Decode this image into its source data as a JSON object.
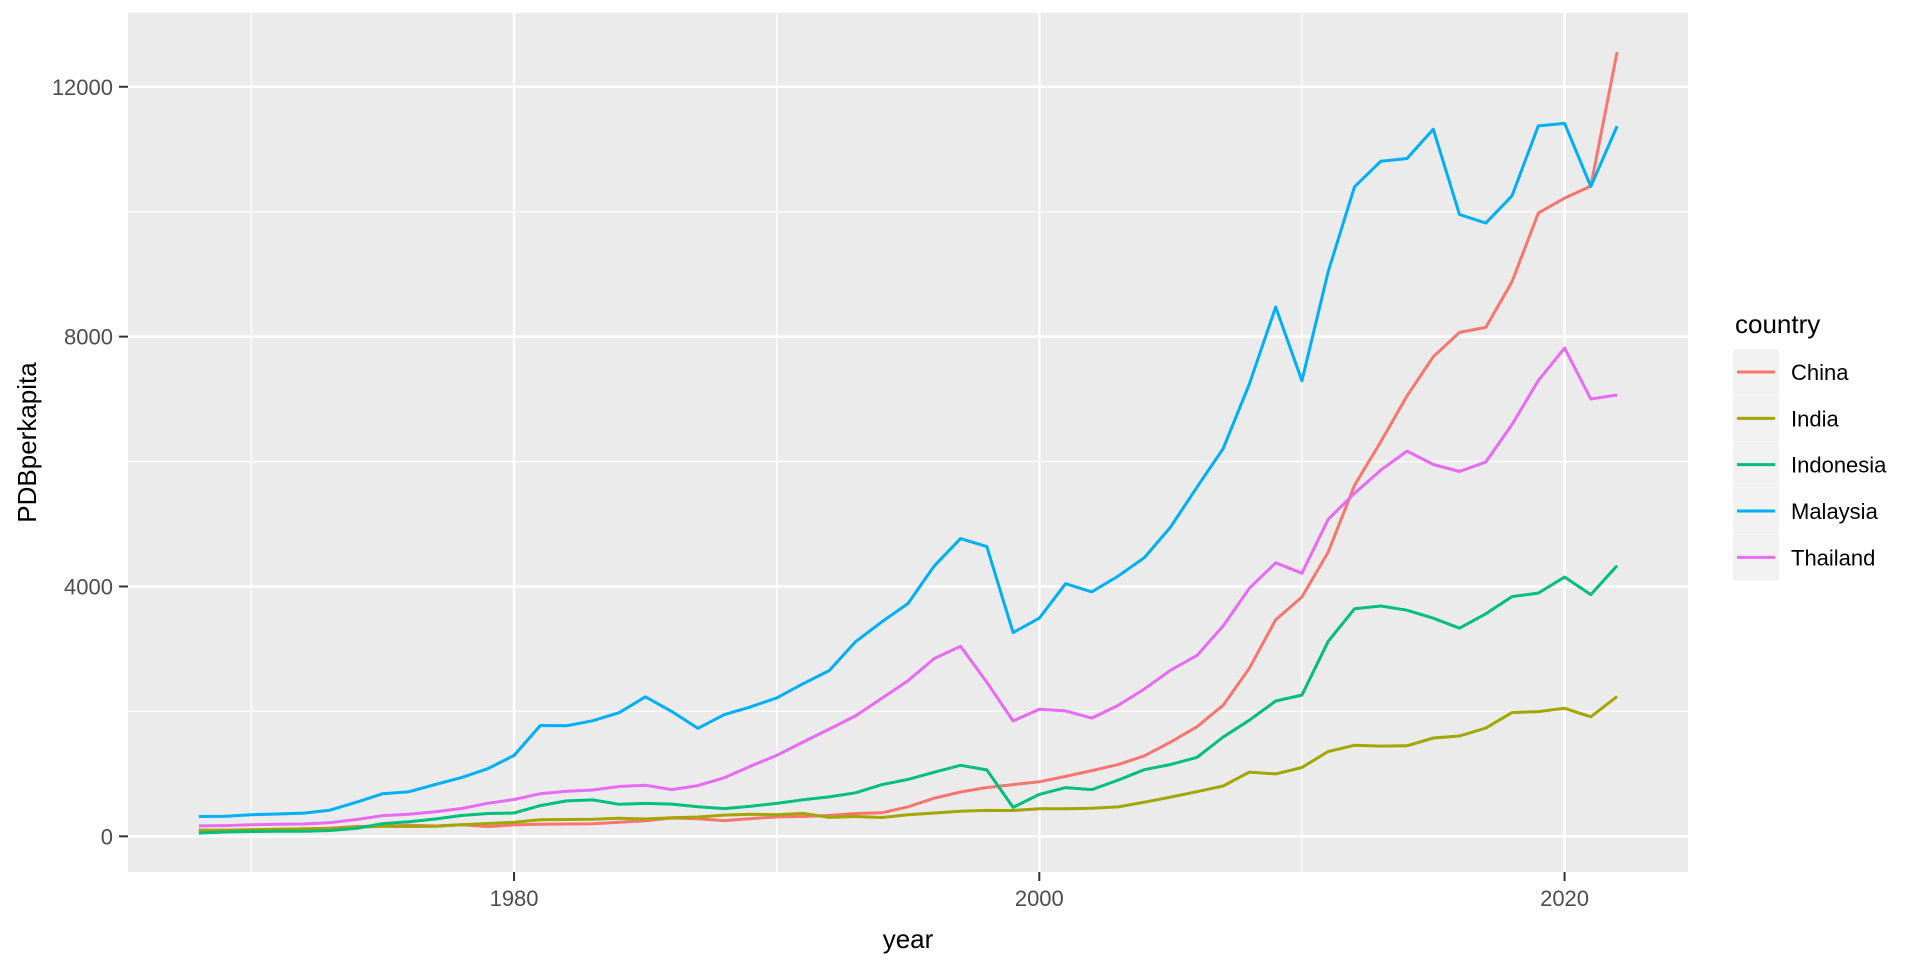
{
  "figure": {
    "background": "#FFFFFF",
    "panel_background": "#EBEBEB",
    "grid_color": "#FFFFFF",
    "tick_mark_color": "#333333",
    "axis_text_color": "#4D4D4D",
    "title_text_color": "#000000"
  },
  "chart_data": {
    "type": "line",
    "title": "",
    "xlabel": "year",
    "ylabel": "PDBperkapita",
    "legend_title": "country",
    "legend_position": "right",
    "grid": true,
    "xlim": [
      1965.3,
      2024.7
    ],
    "ylim": [
      -571,
      13181
    ],
    "x_ticks": [
      1980,
      2000,
      2020
    ],
    "y_ticks": [
      0,
      4000,
      8000,
      12000
    ],
    "x_minor_ticks": [
      1970,
      1990,
      2010
    ],
    "y_minor_ticks": [
      2000,
      6000,
      10000
    ],
    "x": [
      1968,
      1969,
      1970,
      1971,
      1972,
      1973,
      1974,
      1975,
      1976,
      1977,
      1978,
      1979,
      1980,
      1981,
      1982,
      1983,
      1984,
      1985,
      1986,
      1987,
      1988,
      1989,
      1990,
      1991,
      1992,
      1993,
      1994,
      1995,
      1996,
      1997,
      1998,
      1999,
      2000,
      2001,
      2002,
      2003,
      2004,
      2005,
      2006,
      2007,
      2008,
      2009,
      2010,
      2011,
      2012,
      2013,
      2014,
      2015,
      2016,
      2017,
      2018,
      2019,
      2020,
      2021,
      2022
    ],
    "series": [
      {
        "name": "China",
        "color": "#F8766D",
        "values": [
          97,
          91,
          100,
          113,
          119,
          132,
          157,
          160,
          178,
          165,
          185,
          156,
          183,
          195,
          197,
          203,
          225,
          250,
          294,
          282,
          252,
          284,
          311,
          318,
          333,
          366,
          377,
          473,
          610,
          709,
          782,
          829,
          873,
          959,
          1053,
          1149,
          1289,
          1509,
          1753,
          2099,
          2694,
          3468,
          3832,
          4550,
          5618,
          6317,
          7051,
          7679,
          8067,
          8148,
          8879,
          9977,
          10217,
          10409,
          12556
        ]
      },
      {
        "name": "India",
        "color": "#A3A500",
        "values": [
          96,
          100,
          108,
          112,
          119,
          123,
          144,
          163,
          158,
          161,
          186,
          206,
          224,
          267,
          270,
          274,
          291,
          277,
          296,
          310,
          340,
          354,
          346,
          367,
          303,
          317,
          301,
          346,
          374,
          400,
          415,
          413,
          441,
          443,
          449,
          471,
          547,
          628,
          715,
          806,
          1028,
          999,
          1102,
          1358,
          1458,
          1444,
          1450,
          1574,
          1606,
          1733,
          1981,
          1997,
          2050,
          1913,
          2238
        ]
      },
      {
        "name": "Indonesia",
        "color": "#00BF7D",
        "values": [
          54,
          70,
          78,
          80,
          81,
          93,
          127,
          204,
          233,
          278,
          334,
          366,
          373,
          492,
          567,
          584,
          513,
          527,
          516,
          475,
          444,
          481,
          527,
          585,
          632,
          697,
          827,
          912,
          1026,
          1137,
          1064,
          463,
          671,
          780,
          748,
          900,
          1066,
          1150,
          1263,
          1590,
          1860,
          2167,
          2261,
          3122,
          3643,
          3688,
          3621,
          3492,
          3332,
          3563,
          3838,
          3894,
          4151,
          3870,
          4334
        ]
      },
      {
        "name": "Malaysia",
        "color": "#00B0F6",
        "values": [
          317,
          323,
          346,
          358,
          372,
          420,
          547,
          682,
          714,
          830,
          940,
          1083,
          1295,
          1775,
          1769,
          1852,
          1979,
          2234,
          2000,
          1729,
          1947,
          2072,
          2216,
          2442,
          2654,
          3114,
          3433,
          3728,
          4330,
          4766,
          4638,
          3263,
          3492,
          4044,
          3913,
          4166,
          4462,
          4952,
          5587,
          6209,
          7243,
          8475,
          7292,
          9041,
          10399,
          10807,
          10852,
          11319,
          9955,
          9818,
          10254,
          11373,
          11414,
          10403,
          11371
        ]
      },
      {
        "name": "Thailand",
        "color": "#E76BF3",
        "values": [
          167,
          172,
          185,
          192,
          197,
          220,
          270,
          332,
          352,
          392,
          445,
          529,
          590,
          683,
          721,
          742,
          798,
          818,
          748,
          813,
          937,
          1123,
          1296,
          1509,
          1716,
          1928,
          2209,
          2491,
          2847,
          3043,
          2468,
          1846,
          2033,
          2008,
          1893,
          2096,
          2359,
          2660,
          2894,
          3369,
          3973,
          4379,
          4213,
          5076,
          5492,
          5861,
          6168,
          5952,
          5840,
          5993,
          6593,
          7296,
          7817,
          7001,
          7066
        ]
      }
    ]
  }
}
